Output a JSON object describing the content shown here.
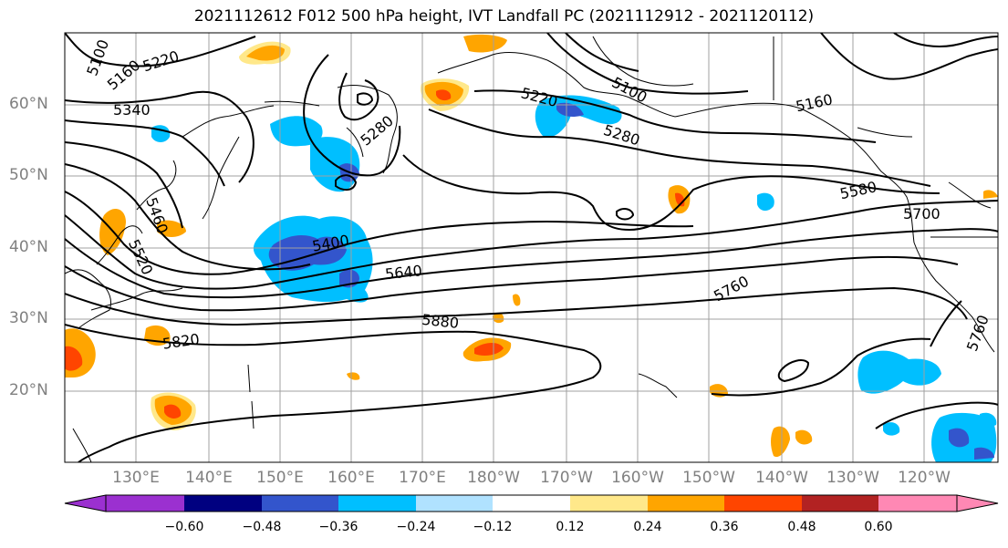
{
  "title": "2021112612 F012 500 hPa height, IVT Landfall PC (2021112912 - 2021120112)",
  "map": {
    "projection": "PlateCarree",
    "lon_range": [
      120,
      245
    ],
    "lat_range": [
      10,
      70
    ],
    "lat_ticks": [
      {
        "value": 60,
        "label": "60°N"
      },
      {
        "value": 50,
        "label": "50°N"
      },
      {
        "value": 40,
        "label": "40°N"
      },
      {
        "value": 30,
        "label": "30°N"
      },
      {
        "value": 20,
        "label": "20°N"
      }
    ],
    "lon_ticks": [
      {
        "value": 130,
        "label": "130°E"
      },
      {
        "value": 140,
        "label": "140°E"
      },
      {
        "value": 150,
        "label": "150°E"
      },
      {
        "value": 160,
        "label": "160°E"
      },
      {
        "value": 170,
        "label": "170°E"
      },
      {
        "value": 180,
        "label": "180°W"
      },
      {
        "value": 190,
        "label": "170°W"
      },
      {
        "value": 200,
        "label": "160°W"
      },
      {
        "value": 210,
        "label": "150°W"
      },
      {
        "value": 220,
        "label": "140°W"
      },
      {
        "value": 230,
        "label": "130°W"
      },
      {
        "value": 240,
        "label": "120°W"
      }
    ],
    "gridlines": true,
    "height_contour_labels": [
      "5100",
      "5160",
      "5220",
      "5280",
      "5340",
      "5400",
      "5460",
      "5520",
      "5580",
      "5640",
      "5700",
      "5760",
      "5820",
      "5880"
    ]
  },
  "colorbar": {
    "ticks": [
      "−0.60",
      "−0.48",
      "−0.36",
      "−0.24",
      "−0.12",
      "0.12",
      "0.24",
      "0.36",
      "0.48",
      "0.60"
    ],
    "colors": [
      "#9b30d0",
      "#000080",
      "#3355cc",
      "#00bfff",
      "#b0e2ff",
      "#ffffff",
      "#ffe88a",
      "#ffa500",
      "#ff4500",
      "#b22222",
      "#ff88b4"
    ],
    "extend": "both"
  }
}
